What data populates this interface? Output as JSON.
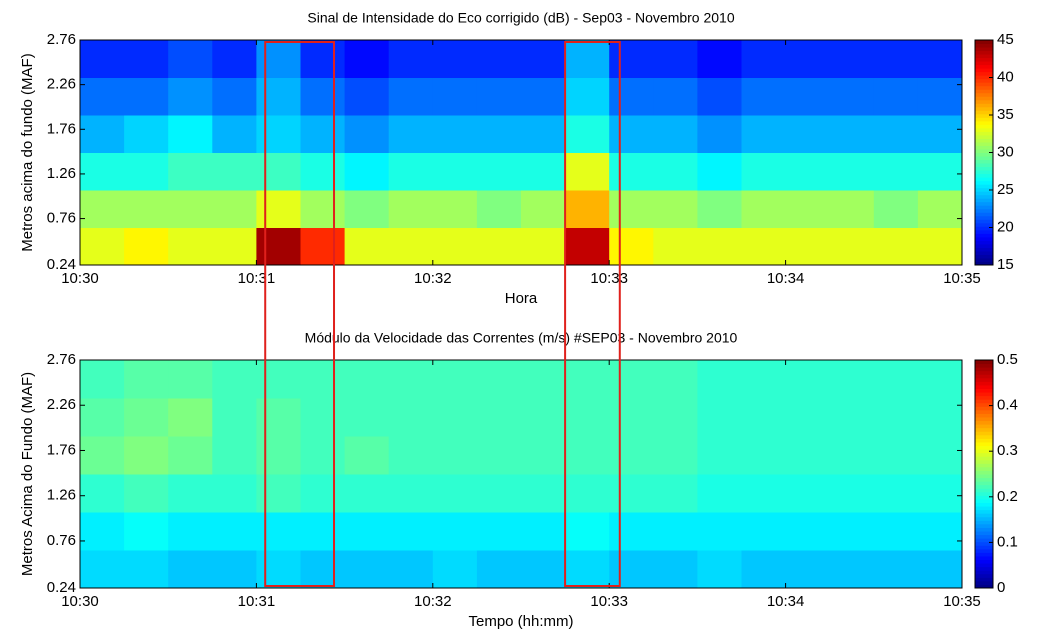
{
  "chart_data": [
    {
      "type": "heatmap",
      "title": "Sinal de Intensidade do Eco corrigido (dB) - Sep03 - Novembro 2010",
      "x_label": "Hora",
      "y_label": "Metros acima do fundo (MAF)",
      "x": [
        0.125,
        0.375,
        0.625,
        0.875,
        1.125,
        1.375,
        1.625,
        1.875,
        2.125,
        2.375,
        2.625,
        2.875,
        3.125,
        3.375,
        3.625,
        3.875,
        4.125,
        4.375,
        4.625,
        4.875
      ],
      "y": [
        0.45,
        0.87,
        1.29,
        1.71,
        2.13,
        2.55
      ],
      "z": [
        [
          33,
          34,
          33,
          33,
          44,
          40,
          33,
          33,
          33,
          33,
          33,
          43,
          34,
          33,
          33,
          33,
          33,
          33,
          33,
          33
        ],
        [
          31,
          31,
          31,
          31,
          33,
          31,
          30,
          31,
          31,
          30,
          31,
          36,
          31,
          31,
          30,
          31,
          31,
          31,
          30,
          31
        ],
        [
          27,
          27,
          28,
          28,
          28,
          27,
          26,
          27,
          27,
          27,
          27,
          33,
          27,
          27,
          26,
          27,
          27,
          27,
          27,
          27
        ],
        [
          24,
          25,
          26,
          24,
          25,
          24,
          23,
          24,
          24,
          24,
          24,
          27,
          24,
          24,
          23,
          24,
          24,
          24,
          24,
          24
        ],
        [
          22,
          22,
          23,
          22,
          24,
          22,
          21,
          22,
          22,
          22,
          22,
          25,
          22,
          22,
          21,
          22,
          22,
          22,
          22,
          22
        ],
        [
          20,
          20,
          21,
          20,
          23,
          20,
          19,
          20,
          20,
          20,
          20,
          24,
          20,
          20,
          19,
          20,
          20,
          20,
          20,
          20
        ]
      ],
      "xlim": [
        0,
        5
      ],
      "xticks": [
        {
          "value": 0,
          "label": "10:30"
        },
        {
          "value": 1,
          "label": "10:31"
        },
        {
          "value": 2,
          "label": "10:32"
        },
        {
          "value": 3,
          "label": "10:33"
        },
        {
          "value": 4,
          "label": "10:34"
        },
        {
          "value": 5,
          "label": "10:35"
        }
      ],
      "ylim": [
        0.24,
        2.76
      ],
      "yticks": [
        0.24,
        0.76,
        1.26,
        1.76,
        2.26,
        2.76
      ],
      "clim": [
        15,
        45
      ],
      "cticks": [
        15,
        20,
        25,
        30,
        35,
        40,
        45
      ],
      "colormap": "jet"
    },
    {
      "type": "heatmap",
      "title": "Módulo da Velocidade das Correntes (m/s) #SEP03 - Novembro 2010",
      "x_label": "Tempo (hh:mm)",
      "y_label": "Metros Acima do Fundo (MAF)",
      "x": [
        0.125,
        0.375,
        0.625,
        0.875,
        1.125,
        1.375,
        1.625,
        1.875,
        2.125,
        2.375,
        2.625,
        2.875,
        3.125,
        3.375,
        3.625,
        3.875,
        4.125,
        4.375,
        4.625,
        4.875
      ],
      "y": [
        0.45,
        0.87,
        1.29,
        1.71,
        2.13,
        2.55
      ],
      "z": [
        [
          0.17,
          0.17,
          0.16,
          0.16,
          0.17,
          0.16,
          0.16,
          0.16,
          0.17,
          0.16,
          0.16,
          0.17,
          0.16,
          0.16,
          0.17,
          0.16,
          0.16,
          0.16,
          0.16,
          0.16
        ],
        [
          0.18,
          0.19,
          0.18,
          0.18,
          0.18,
          0.18,
          0.18,
          0.18,
          0.18,
          0.18,
          0.18,
          0.19,
          0.18,
          0.18,
          0.18,
          0.18,
          0.18,
          0.18,
          0.18,
          0.18
        ],
        [
          0.21,
          0.22,
          0.21,
          0.21,
          0.22,
          0.21,
          0.21,
          0.21,
          0.21,
          0.21,
          0.21,
          0.21,
          0.21,
          0.21,
          0.2,
          0.2,
          0.2,
          0.2,
          0.2,
          0.2
        ],
        [
          0.24,
          0.25,
          0.24,
          0.22,
          0.23,
          0.22,
          0.23,
          0.22,
          0.22,
          0.22,
          0.22,
          0.22,
          0.22,
          0.22,
          0.21,
          0.21,
          0.21,
          0.21,
          0.21,
          0.21
        ],
        [
          0.23,
          0.24,
          0.25,
          0.22,
          0.23,
          0.22,
          0.22,
          0.22,
          0.22,
          0.22,
          0.22,
          0.22,
          0.22,
          0.22,
          0.21,
          0.21,
          0.21,
          0.21,
          0.21,
          0.21
        ],
        [
          0.22,
          0.23,
          0.23,
          0.22,
          0.22,
          0.22,
          0.22,
          0.22,
          0.22,
          0.22,
          0.22,
          0.22,
          0.22,
          0.22,
          0.21,
          0.21,
          0.21,
          0.21,
          0.21,
          0.21
        ]
      ],
      "xlim": [
        0,
        5
      ],
      "xticks": [
        {
          "value": 0,
          "label": "10:30"
        },
        {
          "value": 1,
          "label": "10:31"
        },
        {
          "value": 2,
          "label": "10:32"
        },
        {
          "value": 3,
          "label": "10:33"
        },
        {
          "value": 4,
          "label": "10:34"
        },
        {
          "value": 5,
          "label": "10:35"
        }
      ],
      "ylim": [
        0.24,
        2.76
      ],
      "yticks": [
        0.24,
        0.76,
        1.26,
        1.76,
        2.26,
        2.76
      ],
      "clim": [
        0,
        0.5
      ],
      "cticks": [
        0,
        0.1,
        0.2,
        0.3,
        0.4,
        0.5
      ],
      "colormap": "jet"
    }
  ],
  "highlight_boxes": [
    [
      1.05,
      1.44
    ],
    [
      2.75,
      3.06
    ]
  ],
  "highlight_color": "#e0201c"
}
